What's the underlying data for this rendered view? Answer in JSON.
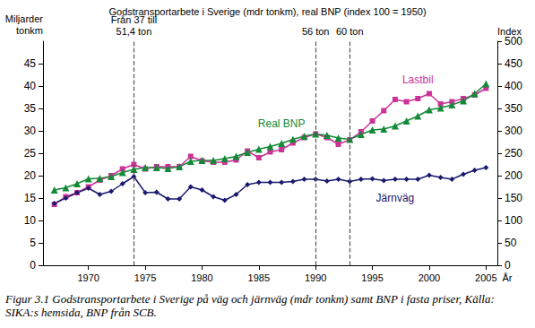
{
  "chart_data": {
    "type": "line",
    "title": "Godstransportarbete i Sverige (mdr tonkm), real BNP (index 100 = 1950)",
    "y_label": "Miljarder\ntonkm",
    "y2_label": "Index",
    "x_label": "År",
    "caption": "Figur 3.1  Godstransportarbete i Sverige på väg och järnväg (mdr tonkm) samt BNP i fasta priser, Källa: SIKA:s hemsida, BNP från SCB.",
    "x": [
      1967,
      1968,
      1969,
      1970,
      1971,
      1972,
      1973,
      1974,
      1975,
      1976,
      1977,
      1978,
      1979,
      1980,
      1981,
      1982,
      1983,
      1984,
      1985,
      1986,
      1987,
      1988,
      1989,
      1990,
      1991,
      1992,
      1993,
      1994,
      1995,
      1996,
      1997,
      1998,
      1999,
      2000,
      2001,
      2002,
      2003,
      2004,
      2005
    ],
    "xlim": [
      1966,
      2006
    ],
    "xticks": [
      1970,
      1975,
      1980,
      1985,
      1990,
      1995,
      2000,
      2005
    ],
    "ylim": [
      0,
      50
    ],
    "yticks": [
      0,
      5,
      10,
      15,
      20,
      25,
      30,
      35,
      40,
      45
    ],
    "y2lim": [
      0,
      500
    ],
    "y2ticks": [
      0,
      50,
      100,
      150,
      200,
      250,
      300,
      350,
      400,
      450,
      500
    ],
    "grid": false,
    "series": [
      {
        "name": "Lastbil",
        "color": "#cc3399",
        "marker": "square",
        "line_style": "solid",
        "values": [
          13.6,
          15.3,
          16.2,
          17.5,
          19.0,
          20.0,
          21.5,
          22.5,
          21.5,
          22.0,
          22.0,
          22.0,
          24.3,
          23.3,
          23.0,
          23.0,
          23.5,
          25.5,
          24.0,
          25.3,
          25.8,
          27.3,
          28.5,
          29.3,
          28.5,
          27.0,
          28.0,
          29.8,
          32.2,
          34.5,
          37.0,
          36.5,
          37.2,
          38.3,
          36.0,
          36.5,
          37.2,
          38.0,
          39.5
        ]
      },
      {
        "name": "Real BNP",
        "color": "#138a36",
        "marker": "triangle",
        "line_style": "solid",
        "axis": "y2",
        "values": [
          168,
          173,
          182,
          193,
          194,
          198,
          207,
          214,
          218,
          218,
          216,
          220,
          232,
          234,
          234,
          238,
          243,
          252,
          259,
          265,
          272,
          281,
          288,
          293,
          290,
          284,
          281,
          292,
          302,
          304,
          311,
          322,
          333,
          347,
          351,
          358,
          367,
          383,
          405
        ]
      },
      {
        "name": "Järnväg",
        "color": "#1a1a6e",
        "marker": "diamond",
        "line_style": "solid",
        "values": [
          13.8,
          15.0,
          16.2,
          17.2,
          15.8,
          16.5,
          18.2,
          19.8,
          16.2,
          16.3,
          14.8,
          14.8,
          17.5,
          16.8,
          15.3,
          14.5,
          15.8,
          18.0,
          18.5,
          18.5,
          18.5,
          18.7,
          19.2,
          19.2,
          18.8,
          19.2,
          18.7,
          19.2,
          19.3,
          18.9,
          19.2,
          19.2,
          19.2,
          20.1,
          19.6,
          19.2,
          20.3,
          21.2,
          21.8
        ]
      }
    ],
    "annotations": [
      {
        "x": 1974,
        "text": "Från 37 till\n51,4 ton"
      },
      {
        "x": 1990,
        "text": "56 ton"
      },
      {
        "x": 1993,
        "text": "60 ton"
      }
    ]
  }
}
